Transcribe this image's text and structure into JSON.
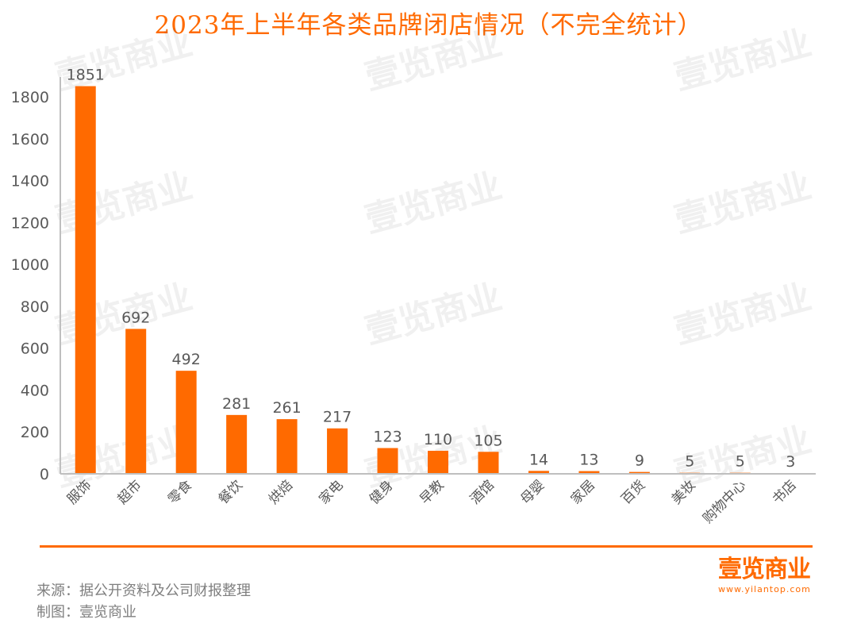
{
  "chart_data": {
    "type": "bar",
    "title": "2023年上半年各类品牌闭店情况（不完全统计）",
    "categories": [
      "服饰",
      "超市",
      "零食",
      "餐饮",
      "烘焙",
      "家电",
      "健身",
      "早教",
      "酒馆",
      "母婴",
      "家居",
      "百货",
      "美妆",
      "购物中心",
      "书店"
    ],
    "values": [
      1851,
      692,
      492,
      281,
      261,
      217,
      123,
      110,
      105,
      14,
      13,
      9,
      5,
      5,
      3
    ],
    "ylim": [
      0,
      1800
    ],
    "yticks": [
      "0",
      "200",
      "400",
      "600",
      "800",
      "1000",
      "1200",
      "1400",
      "1600",
      "1800"
    ],
    "xlabel": "",
    "ylabel": "",
    "grid": false,
    "bar_color": "#FF6A00",
    "label_color": "#595959"
  },
  "footer": {
    "source": "来源：据公开资料及公司财报整理",
    "maker": "制图：壹览商业"
  },
  "logo": {
    "text": "壹览商业",
    "url": "www.yilantop.com"
  },
  "watermark": "壹览商业"
}
